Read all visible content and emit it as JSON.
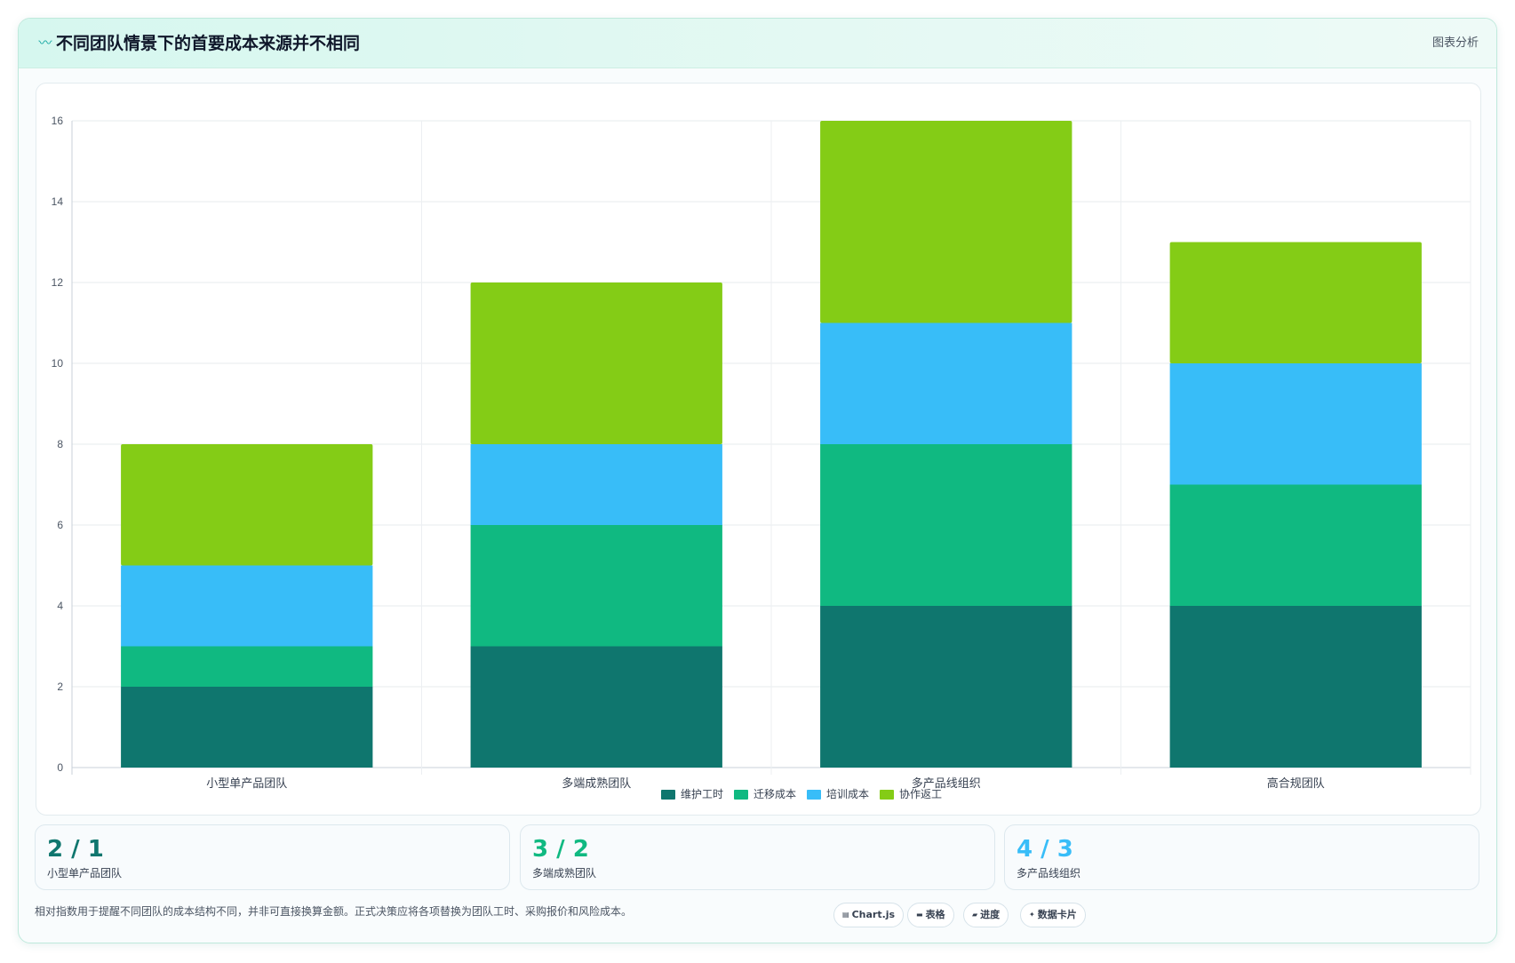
{
  "header": {
    "title": "不同团队情景下的首要成本来源并不相同",
    "title_icon": "wave-icon",
    "action_label": "图表分析"
  },
  "chart_data": {
    "type": "bar",
    "stacked": true,
    "categories": [
      "小型单产品团队",
      "多端成熟团队",
      "多产品线组织",
      "高合规团队"
    ],
    "series": [
      {
        "name": "维护工时",
        "color": "#0f766e",
        "values": [
          2,
          3,
          4,
          4
        ]
      },
      {
        "name": "迁移成本",
        "color": "#10b981",
        "values": [
          1,
          3,
          4,
          3
        ]
      },
      {
        "name": "培训成本",
        "color": "#38bdf8",
        "values": [
          2,
          2,
          3,
          3
        ]
      },
      {
        "name": "协作返工",
        "color": "#84cc16",
        "values": [
          3,
          4,
          5,
          3
        ]
      }
    ],
    "ylim": [
      0,
      16
    ],
    "yticks": [
      0,
      2,
      4,
      6,
      8,
      10,
      12,
      14,
      16
    ],
    "grid": true,
    "legend_position": "bottom"
  },
  "stats": [
    {
      "value": "2 / 1",
      "label": "小型单产品团队",
      "color": "#0f766e"
    },
    {
      "value": "3 / 2",
      "label": "多端成熟团队",
      "color": "#10b981"
    },
    {
      "value": "4 / 3",
      "label": "多产品线组织",
      "color": "#38bdf8"
    }
  ],
  "footnote": "相对指数用于提醒不同团队的成本结构不同，并非可直接换算金额。正式决策应将各项替换为团队工时、采购报价和风险成本。",
  "chips": [
    {
      "label": "Chart.js",
      "icon": "chart-icon"
    },
    {
      "label": "表格",
      "icon": "table-icon"
    },
    {
      "label": "进度",
      "icon": "progress-icon"
    },
    {
      "label": "数据卡片",
      "icon": "sparkle-icon"
    }
  ]
}
